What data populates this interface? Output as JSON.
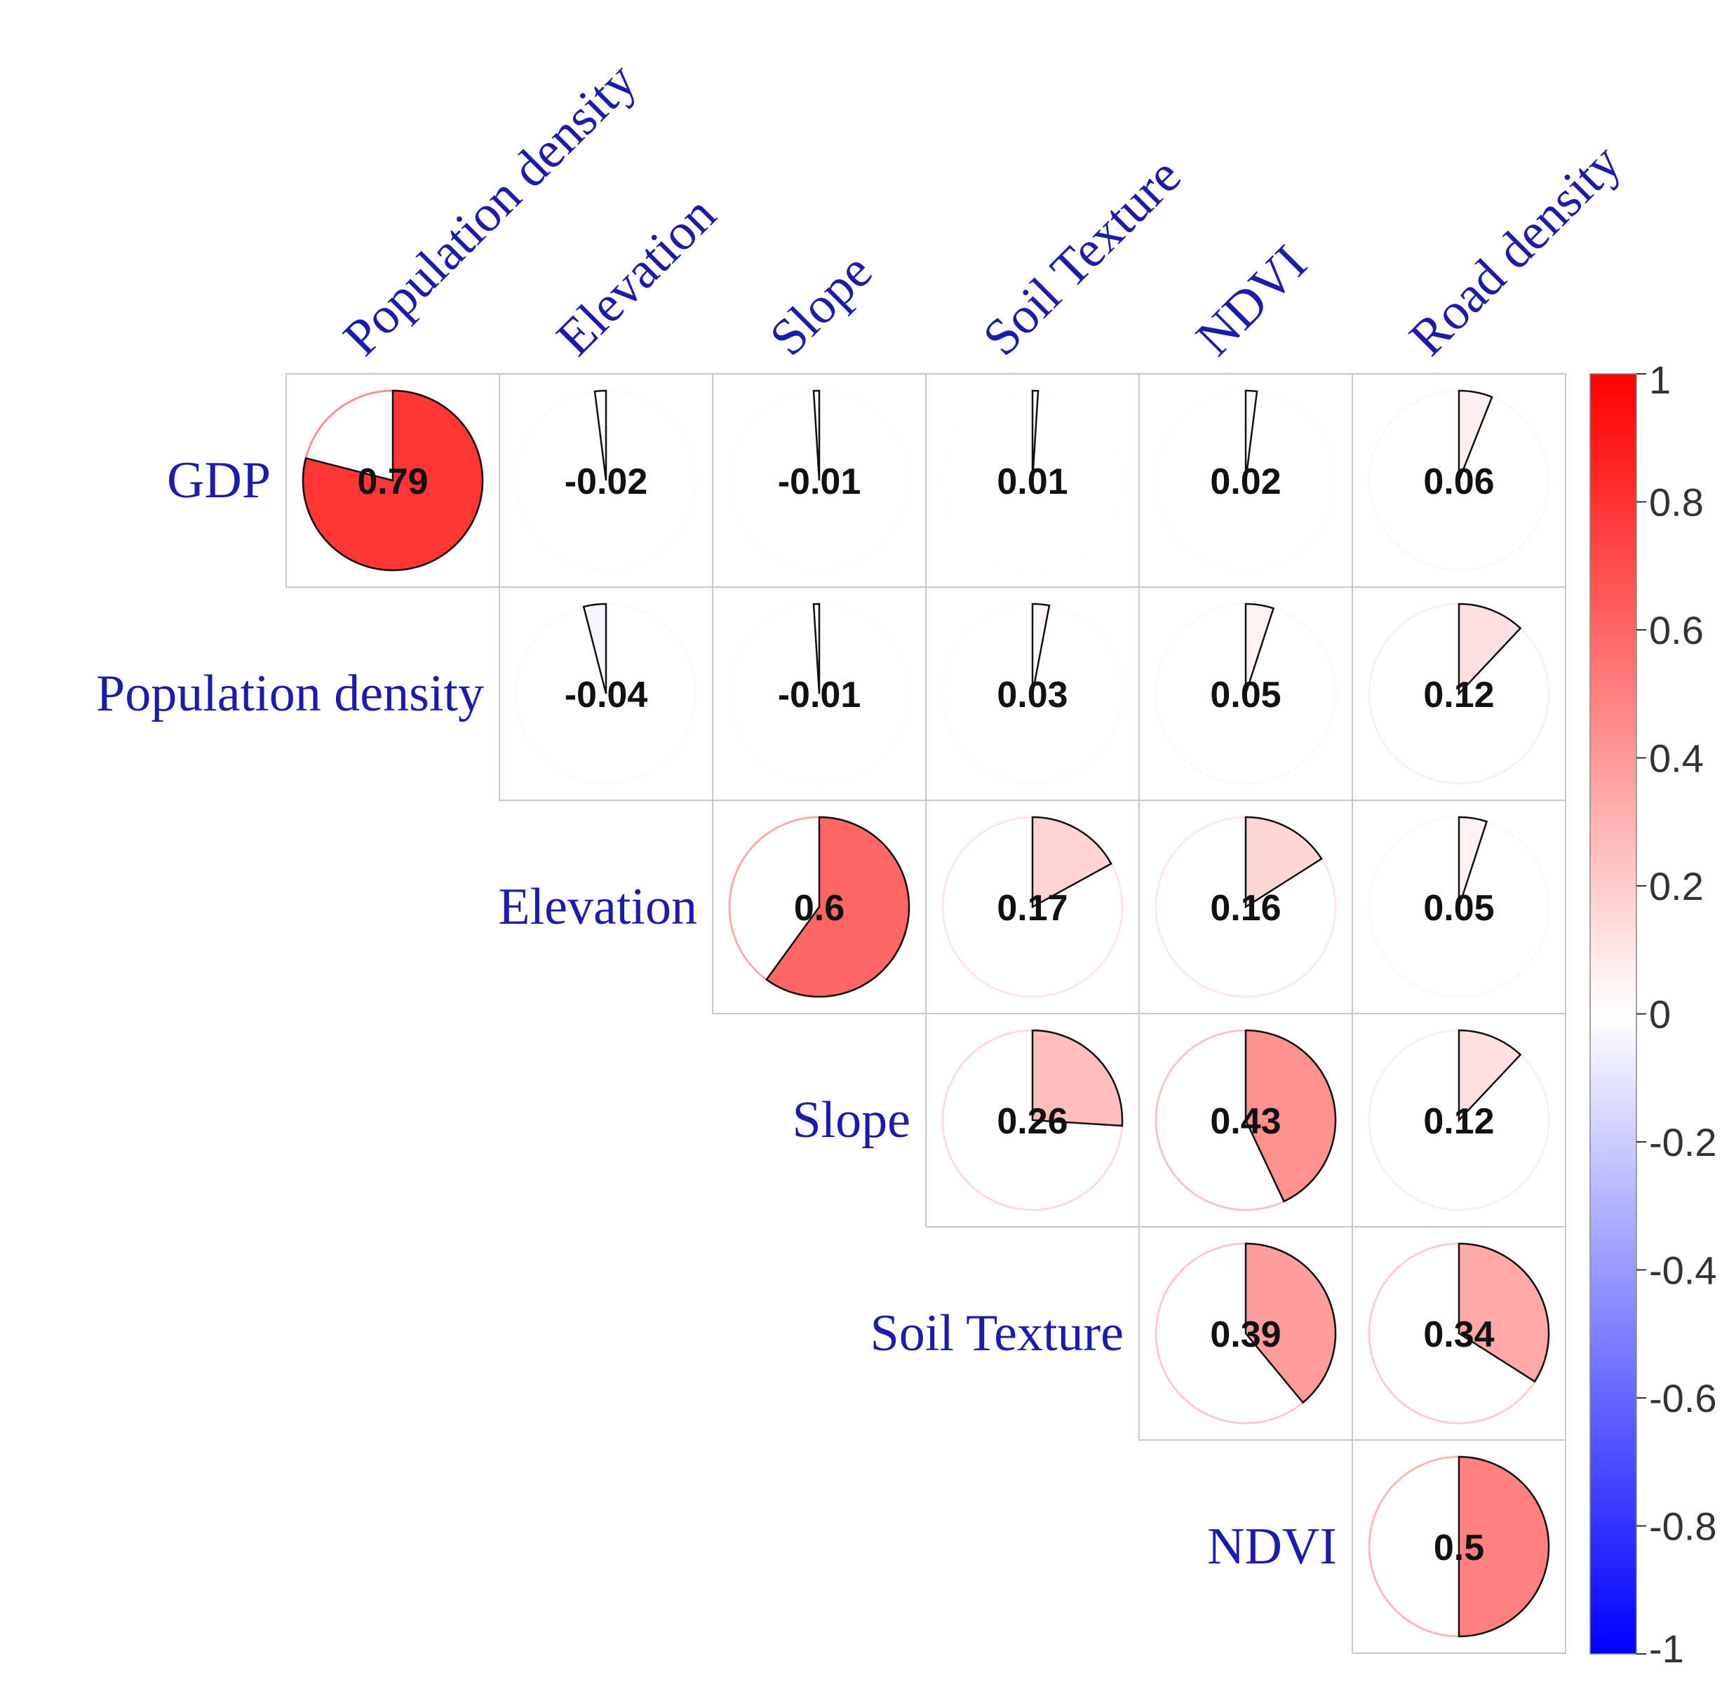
{
  "chart_data": {
    "type": "heatmap",
    "style": "pie-correlation-matrix-upper",
    "row_labels": [
      "GDP",
      "Population density",
      "Elevation",
      "Slope",
      "Soil Texture",
      "NDVI"
    ],
    "col_labels": [
      "Population density",
      "Elevation",
      "Slope",
      "Soil Texture",
      "NDVI",
      "Road density"
    ],
    "cells": [
      {
        "row": 0,
        "col": 0,
        "value": 0.79,
        "label": "0.79"
      },
      {
        "row": 0,
        "col": 1,
        "value": -0.02,
        "label": "-0.02"
      },
      {
        "row": 0,
        "col": 2,
        "value": -0.01,
        "label": "-0.01"
      },
      {
        "row": 0,
        "col": 3,
        "value": 0.01,
        "label": "0.01"
      },
      {
        "row": 0,
        "col": 4,
        "value": 0.02,
        "label": "0.02"
      },
      {
        "row": 0,
        "col": 5,
        "value": 0.06,
        "label": "0.06"
      },
      {
        "row": 1,
        "col": 1,
        "value": -0.04,
        "label": "-0.04"
      },
      {
        "row": 1,
        "col": 2,
        "value": -0.01,
        "label": "-0.01"
      },
      {
        "row": 1,
        "col": 3,
        "value": 0.03,
        "label": "0.03"
      },
      {
        "row": 1,
        "col": 4,
        "value": 0.05,
        "label": "0.05"
      },
      {
        "row": 1,
        "col": 5,
        "value": 0.12,
        "label": "0.12"
      },
      {
        "row": 2,
        "col": 2,
        "value": 0.6,
        "label": "0.6"
      },
      {
        "row": 2,
        "col": 3,
        "value": 0.17,
        "label": "0.17"
      },
      {
        "row": 2,
        "col": 4,
        "value": 0.16,
        "label": "0.16"
      },
      {
        "row": 2,
        "col": 5,
        "value": 0.05,
        "label": "0.05"
      },
      {
        "row": 3,
        "col": 3,
        "value": 0.26,
        "label": "0.26"
      },
      {
        "row": 3,
        "col": 4,
        "value": 0.43,
        "label": "0.43"
      },
      {
        "row": 3,
        "col": 5,
        "value": 0.12,
        "label": "0.12"
      },
      {
        "row": 4,
        "col": 4,
        "value": 0.39,
        "label": "0.39"
      },
      {
        "row": 4,
        "col": 5,
        "value": 0.34,
        "label": "0.34"
      },
      {
        "row": 5,
        "col": 5,
        "value": 0.5,
        "label": "0.5"
      }
    ],
    "color_scale": {
      "min": -1,
      "max": 1,
      "low_color": "#0000ff",
      "mid_color": "#ffffff",
      "high_color": "#ff0000",
      "ticks": [
        1,
        0.8,
        0.6,
        0.4,
        0.2,
        0,
        -0.2,
        -0.4,
        -0.6,
        -0.8,
        -1
      ],
      "tick_labels": [
        "1",
        "0.8",
        "0.6",
        "0.4",
        "0.2",
        "0",
        "-0.2",
        "-0.4",
        "-0.6",
        "-0.8",
        "-1"
      ],
      "legend_position": "right"
    }
  }
}
